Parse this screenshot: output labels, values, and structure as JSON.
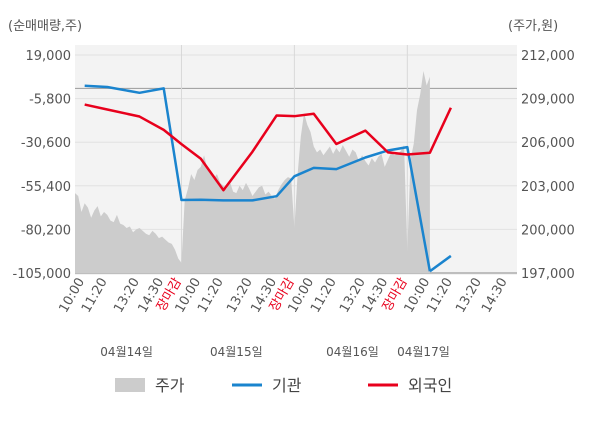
{
  "chart_data": {
    "type": "line",
    "left_axis_unit": "(순매매량,주)",
    "right_axis_unit": "(주가,원)",
    "y_left": {
      "min": -105000,
      "max": 19000,
      "ticks": [
        19000,
        -5800,
        -30600,
        -55400,
        -80200,
        -105000
      ],
      "tick_labels": [
        "19,000",
        "-5,800",
        "-30,600",
        "-55,400",
        "-80,200",
        "-105,000"
      ]
    },
    "y_right": {
      "min": 197000,
      "max": 212000,
      "ticks": [
        212000,
        209000,
        206000,
        203000,
        200000,
        197000
      ],
      "tick_labels": [
        "212,000",
        "209,000",
        "206,000",
        "203,000",
        "200,000",
        "197,000"
      ]
    },
    "x_ticks": [
      {
        "label": "10:00",
        "pos": 0.3,
        "red": false
      },
      {
        "label": "11:20",
        "pos": 1.0,
        "red": false
      },
      {
        "label": "13:20",
        "pos": 2.0,
        "red": false
      },
      {
        "label": "14:30",
        "pos": 2.75,
        "red": false
      },
      {
        "label": "장마감",
        "pos": 3.3,
        "red": true
      },
      {
        "label": "10:00",
        "pos": 3.9,
        "red": false
      },
      {
        "label": "11:20",
        "pos": 4.6,
        "red": false
      },
      {
        "label": "13:20",
        "pos": 5.5,
        "red": false
      },
      {
        "label": "14:30",
        "pos": 6.25,
        "red": false
      },
      {
        "label": "장마감",
        "pos": 6.8,
        "red": true
      },
      {
        "label": "10:00",
        "pos": 7.4,
        "red": false
      },
      {
        "label": "11:20",
        "pos": 8.1,
        "red": false
      },
      {
        "label": "13:20",
        "pos": 9.0,
        "red": false
      },
      {
        "label": "14:30",
        "pos": 9.7,
        "red": false
      },
      {
        "label": "장마감",
        "pos": 10.3,
        "red": true
      },
      {
        "label": "10:00",
        "pos": 11.0,
        "red": false
      },
      {
        "label": "11:20",
        "pos": 11.7,
        "red": false
      },
      {
        "label": "13:20",
        "pos": 12.6,
        "red": false
      },
      {
        "label": "14:30",
        "pos": 13.4,
        "red": false
      }
    ],
    "x_range": [
      0,
      13.7
    ],
    "date_labels": [
      {
        "label": "04월14일",
        "pos": 1.6
      },
      {
        "label": "04월15일",
        "pos": 5.0
      },
      {
        "label": "04월16일",
        "pos": 8.6
      },
      {
        "label": "04월17일",
        "pos": 10.8
      }
    ],
    "day_boundaries": [
      3.3,
      6.8,
      10.3
    ],
    "series": [
      {
        "name": "주가",
        "axis": "right",
        "kind": "area",
        "color": "#cccccc",
        "x": [
          0,
          0.1,
          0.2,
          0.3,
          0.4,
          0.5,
          0.6,
          0.7,
          0.8,
          0.9,
          1.0,
          1.1,
          1.2,
          1.3,
          1.4,
          1.5,
          1.6,
          1.7,
          1.8,
          1.9,
          2.0,
          2.1,
          2.2,
          2.3,
          2.4,
          2.5,
          2.6,
          2.7,
          2.8,
          2.9,
          3.0,
          3.1,
          3.2,
          3.3,
          3.4,
          3.5,
          3.6,
          3.7,
          3.8,
          3.9,
          4.0,
          4.1,
          4.2,
          4.3,
          4.4,
          4.5,
          4.6,
          4.7,
          4.8,
          4.9,
          5.0,
          5.1,
          5.2,
          5.3,
          5.4,
          5.5,
          5.6,
          5.7,
          5.8,
          5.9,
          6.0,
          6.1,
          6.2,
          6.3,
          6.4,
          6.5,
          6.6,
          6.7,
          6.8,
          6.9,
          7.0,
          7.1,
          7.2,
          7.3,
          7.4,
          7.5,
          7.6,
          7.7,
          7.8,
          7.9,
          8.0,
          8.1,
          8.2,
          8.3,
          8.4,
          8.5,
          8.6,
          8.7,
          8.8,
          8.9,
          9.0,
          9.1,
          9.2,
          9.3,
          9.4,
          9.5,
          9.6,
          9.7,
          9.8,
          9.9,
          10.0,
          10.1,
          10.2,
          10.3,
          10.4,
          10.5,
          10.6,
          10.7,
          10.8,
          10.9,
          11.0
        ],
        "values": [
          202500,
          202300,
          201200,
          201800,
          201500,
          200800,
          201300,
          201600,
          200900,
          201200,
          201000,
          200600,
          200500,
          201000,
          200400,
          200300,
          200100,
          200200,
          199800,
          200000,
          200100,
          199900,
          199700,
          199600,
          199900,
          199700,
          199400,
          199500,
          199300,
          199100,
          199000,
          198600,
          198000,
          197700,
          202000,
          202800,
          203800,
          203400,
          204100,
          204300,
          205100,
          204200,
          204000,
          203500,
          203800,
          203200,
          203000,
          202800,
          203300,
          202600,
          202500,
          203000,
          202700,
          203200,
          202800,
          202300,
          202600,
          202900,
          203000,
          202400,
          202600,
          202300,
          202100,
          202700,
          203100,
          203400,
          203600,
          203500,
          200100,
          203800,
          206400,
          208000,
          207200,
          206700,
          205700,
          205300,
          205500,
          205100,
          205400,
          205700,
          205200,
          205600,
          205300,
          205800,
          205400,
          205000,
          205500,
          205300,
          204700,
          205100,
          204700,
          204400,
          204900,
          204600,
          205000,
          205200,
          204300,
          204800,
          205300,
          205100,
          205200,
          205400,
          205800,
          198500,
          204800,
          205900,
          208200,
          209300,
          210900,
          209900,
          210500
        ]
      },
      {
        "name": "기관",
        "axis": "left",
        "kind": "line",
        "color": "#1a84ce",
        "x": [
          0.3,
          1.0,
          2.0,
          2.75,
          3.3,
          3.9,
          4.6,
          5.5,
          6.25,
          6.8,
          7.4,
          8.1,
          9.0,
          9.7,
          10.3,
          11.0
        ],
        "values": [
          1500,
          800,
          -2500,
          0,
          -63500,
          -63300,
          -63700,
          -63700,
          -61300,
          -50000,
          -45200,
          -45900,
          -39300,
          -35300,
          -33400,
          -104000
        ]
      },
      {
        "name": "기관 (04월17일)",
        "axis": "left",
        "kind": "line-extra",
        "color": "#1a84ce",
        "x": [
          11.0,
          11.65
        ],
        "values": [
          -104000,
          -95300
        ]
      },
      {
        "name": "외국인",
        "axis": "left",
        "kind": "line",
        "color": "#e8001c",
        "x": [
          0.3,
          1.0,
          2.0,
          2.75,
          3.3,
          3.9,
          4.6,
          5.5,
          6.25,
          6.8,
          7.4,
          8.1,
          9.0,
          9.7,
          10.3,
          11.0,
          11.65
        ],
        "values": [
          -9200,
          -12000,
          -16000,
          -23600,
          -31700,
          -40000,
          -57900,
          -36000,
          -15400,
          -15800,
          -14400,
          -31600,
          -24000,
          -36400,
          -37600,
          -36600,
          -11000
        ]
      }
    ],
    "legend": [
      {
        "name": "주가",
        "symbol": "box",
        "color": "#cccccc"
      },
      {
        "name": "기관",
        "symbol": "line",
        "color": "#1a84ce"
      },
      {
        "name": "외국인",
        "symbol": "line",
        "color": "#e8001c"
      }
    ]
  }
}
